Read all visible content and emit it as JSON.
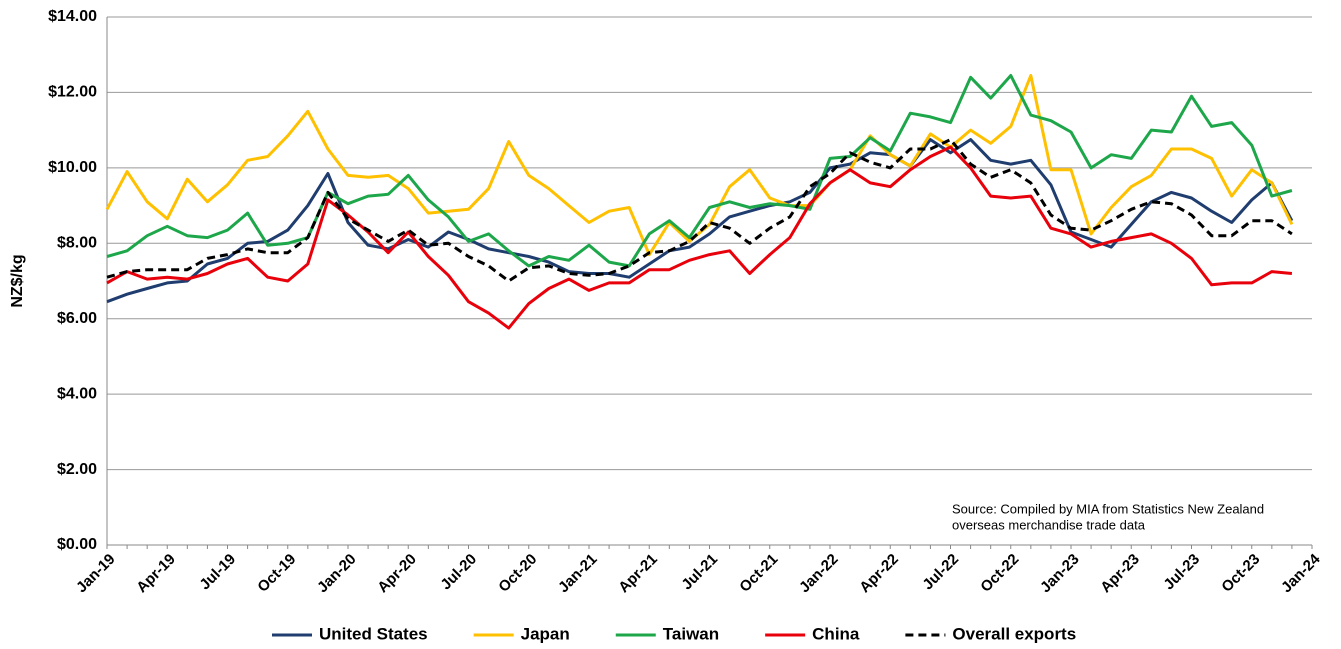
{
  "chart_data": {
    "type": "line",
    "y_label": "NZ$/kg",
    "annotation": [
      "Source: Compiled by MIA from Statistics  New Zealand",
      "overseas merchandise trade data"
    ],
    "categories": [
      "Jan-19",
      null,
      null,
      "Apr-19",
      null,
      null,
      "Jul-19",
      null,
      null,
      "Oct-19",
      null,
      null,
      "Jan-20",
      null,
      null,
      "Apr-20",
      null,
      null,
      "Jul-20",
      null,
      null,
      "Oct-20",
      null,
      null,
      "Jan-21",
      null,
      null,
      "Apr-21",
      null,
      null,
      "Jul-21",
      null,
      null,
      "Oct-21",
      null,
      null,
      "Jan-22",
      null,
      null,
      "Apr-22",
      null,
      null,
      "Jul-22",
      null,
      null,
      "Oct-22",
      null,
      null,
      "Jan-23",
      null,
      null,
      "Apr-23",
      null,
      null,
      "Jul-23",
      null,
      null,
      "Oct-23",
      null,
      null,
      "Jan-24"
    ],
    "series": [
      {
        "name": "United States",
        "color": "#1f3d6e",
        "style": "solid",
        "values": [
          6.45,
          6.65,
          6.8,
          6.95,
          7.0,
          7.45,
          7.6,
          8.0,
          8.05,
          8.35,
          9.0,
          9.85,
          8.55,
          7.95,
          7.85,
          8.1,
          7.9,
          8.3,
          8.1,
          7.85,
          7.75,
          7.65,
          7.5,
          7.25,
          7.2,
          7.2,
          7.1,
          7.45,
          7.8,
          7.9,
          8.25,
          8.7,
          8.85,
          9.0,
          9.1,
          9.35,
          10.0,
          10.1,
          10.4,
          10.35,
          10.05,
          10.75,
          10.4,
          10.75,
          10.2,
          10.1,
          10.2,
          9.55,
          8.3,
          8.1,
          7.9,
          8.5,
          9.1,
          9.35,
          9.2,
          8.85,
          8.55,
          9.15,
          9.6,
          8.6,
          null
        ]
      },
      {
        "name": "Japan",
        "color": "#ffc000",
        "style": "solid",
        "values": [
          8.9,
          9.9,
          9.1,
          8.65,
          9.7,
          9.1,
          9.55,
          10.2,
          10.3,
          10.85,
          11.5,
          10.5,
          9.8,
          9.75,
          9.8,
          9.45,
          8.8,
          8.85,
          8.9,
          9.45,
          10.7,
          9.8,
          9.45,
          9.0,
          8.55,
          8.85,
          8.95,
          7.7,
          8.55,
          8.05,
          8.5,
          9.5,
          9.95,
          9.2,
          9.0,
          9.0,
          9.6,
          9.95,
          10.85,
          10.35,
          10.05,
          10.9,
          10.55,
          11.0,
          10.65,
          11.1,
          12.45,
          9.95,
          9.95,
          8.25,
          8.95,
          9.5,
          9.8,
          10.5,
          10.5,
          10.25,
          9.25,
          9.95,
          9.6,
          8.5,
          null
        ]
      },
      {
        "name": "Taiwan",
        "color": "#1da74a",
        "style": "solid",
        "values": [
          7.65,
          7.8,
          8.2,
          8.45,
          8.2,
          8.15,
          8.35,
          8.8,
          7.95,
          8.0,
          8.15,
          9.35,
          9.05,
          9.25,
          9.3,
          9.8,
          9.15,
          8.7,
          8.05,
          8.25,
          7.8,
          7.4,
          7.65,
          7.55,
          7.95,
          7.5,
          7.4,
          8.25,
          8.6,
          8.15,
          8.95,
          9.1,
          8.95,
          9.05,
          9.0,
          8.9,
          10.25,
          10.3,
          10.8,
          10.45,
          11.45,
          11.35,
          11.2,
          12.4,
          11.85,
          12.45,
          11.4,
          11.25,
          10.95,
          10.0,
          10.35,
          10.25,
          11.0,
          10.95,
          11.9,
          11.1,
          11.2,
          10.6,
          9.25,
          9.4,
          null
        ]
      },
      {
        "name": "China",
        "color": "#e8000b",
        "style": "solid",
        "values": [
          6.95,
          7.25,
          7.05,
          7.1,
          7.05,
          7.2,
          7.45,
          7.6,
          7.1,
          7.0,
          7.45,
          9.15,
          8.75,
          8.3,
          7.75,
          8.3,
          7.65,
          7.15,
          6.45,
          6.15,
          5.75,
          6.4,
          6.8,
          7.05,
          6.75,
          6.95,
          6.95,
          7.3,
          7.3,
          7.55,
          7.7,
          7.8,
          7.2,
          7.7,
          8.15,
          9.05,
          9.6,
          9.95,
          9.6,
          9.5,
          9.95,
          10.3,
          10.55,
          10.0,
          9.25,
          9.2,
          9.25,
          8.4,
          8.25,
          7.9,
          8.05,
          8.15,
          8.25,
          8.0,
          7.6,
          6.9,
          6.95,
          6.95,
          7.25,
          7.2,
          null
        ]
      },
      {
        "name": "Overall exports",
        "color": "#000000",
        "style": "dashed",
        "values": [
          7.1,
          7.25,
          7.3,
          7.3,
          7.3,
          7.6,
          7.7,
          7.85,
          7.75,
          7.75,
          8.15,
          9.35,
          8.65,
          8.35,
          8.05,
          8.35,
          7.95,
          8.0,
          7.65,
          7.4,
          7.0,
          7.35,
          7.4,
          7.2,
          7.15,
          7.2,
          7.4,
          7.75,
          7.8,
          8.05,
          8.55,
          8.4,
          8.0,
          8.4,
          8.7,
          9.5,
          9.85,
          10.4,
          10.15,
          10.0,
          10.5,
          10.5,
          10.75,
          10.1,
          9.75,
          9.95,
          9.6,
          8.75,
          8.4,
          8.35,
          8.6,
          8.9,
          9.1,
          9.05,
          8.75,
          8.2,
          8.2,
          8.6,
          8.6,
          8.25,
          null
        ]
      }
    ],
    "ylim": [
      0,
      14
    ],
    "yticks": [
      {
        "value": 0,
        "label": "$0.00"
      },
      {
        "value": 2,
        "label": "$2.00"
      },
      {
        "value": 4,
        "label": "$4.00"
      },
      {
        "value": 6,
        "label": "$6.00"
      },
      {
        "value": 8,
        "label": "$8.00"
      },
      {
        "value": 10,
        "label": "$10.00"
      },
      {
        "value": 12,
        "label": "$12.00"
      },
      {
        "value": 14,
        "label": "$14.00"
      }
    ],
    "grid": true,
    "legend": "bottom"
  }
}
